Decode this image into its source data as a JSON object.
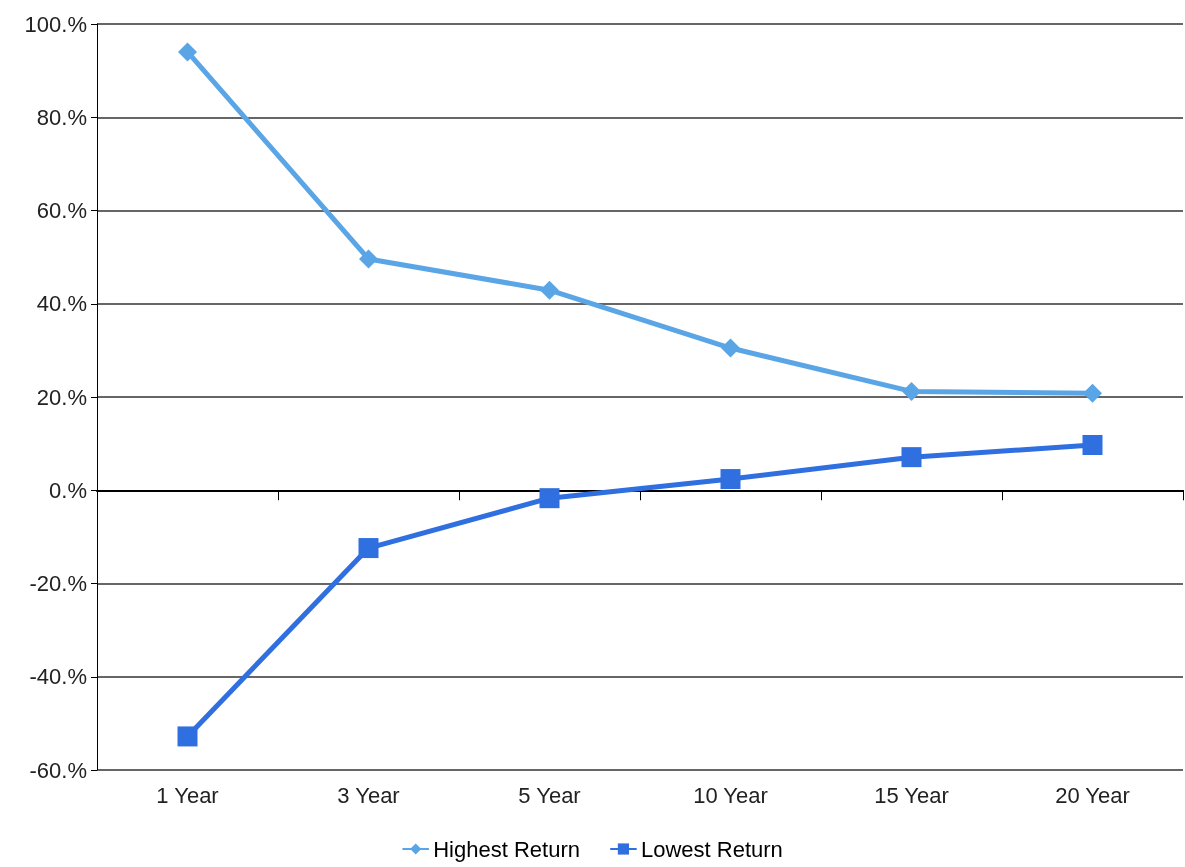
{
  "chart_data": {
    "type": "line",
    "categories": [
      "1 Year",
      "3 Year",
      "5 Year",
      "10 Year",
      "15 Year",
      "20 Year"
    ],
    "series": [
      {
        "name": "Highest Return",
        "color": "#5aa5e6",
        "marker": "diamond",
        "values": [
          94.0,
          49.6,
          42.9,
          30.5,
          21.2,
          20.8
        ]
      },
      {
        "name": "Lowest Return",
        "color": "#2f6fe0",
        "marker": "square",
        "values": [
          -52.8,
          -12.4,
          -1.7,
          2.4,
          7.1,
          9.7
        ]
      }
    ],
    "ylim": [
      -60,
      100
    ],
    "yticks": [
      {
        "value": -60,
        "label": "-60.%"
      },
      {
        "value": -40,
        "label": "-40.%"
      },
      {
        "value": -20,
        "label": "-20.%"
      },
      {
        "value": 0,
        "label": "0.%"
      },
      {
        "value": 20,
        "label": "20.%"
      },
      {
        "value": 40,
        "label": "40.%"
      },
      {
        "value": 60,
        "label": "60.%"
      },
      {
        "value": 80,
        "label": "80.%"
      },
      {
        "value": 100,
        "label": "100.%"
      }
    ],
    "grid": "y",
    "legend": "bottom",
    "line_style": "solid"
  }
}
